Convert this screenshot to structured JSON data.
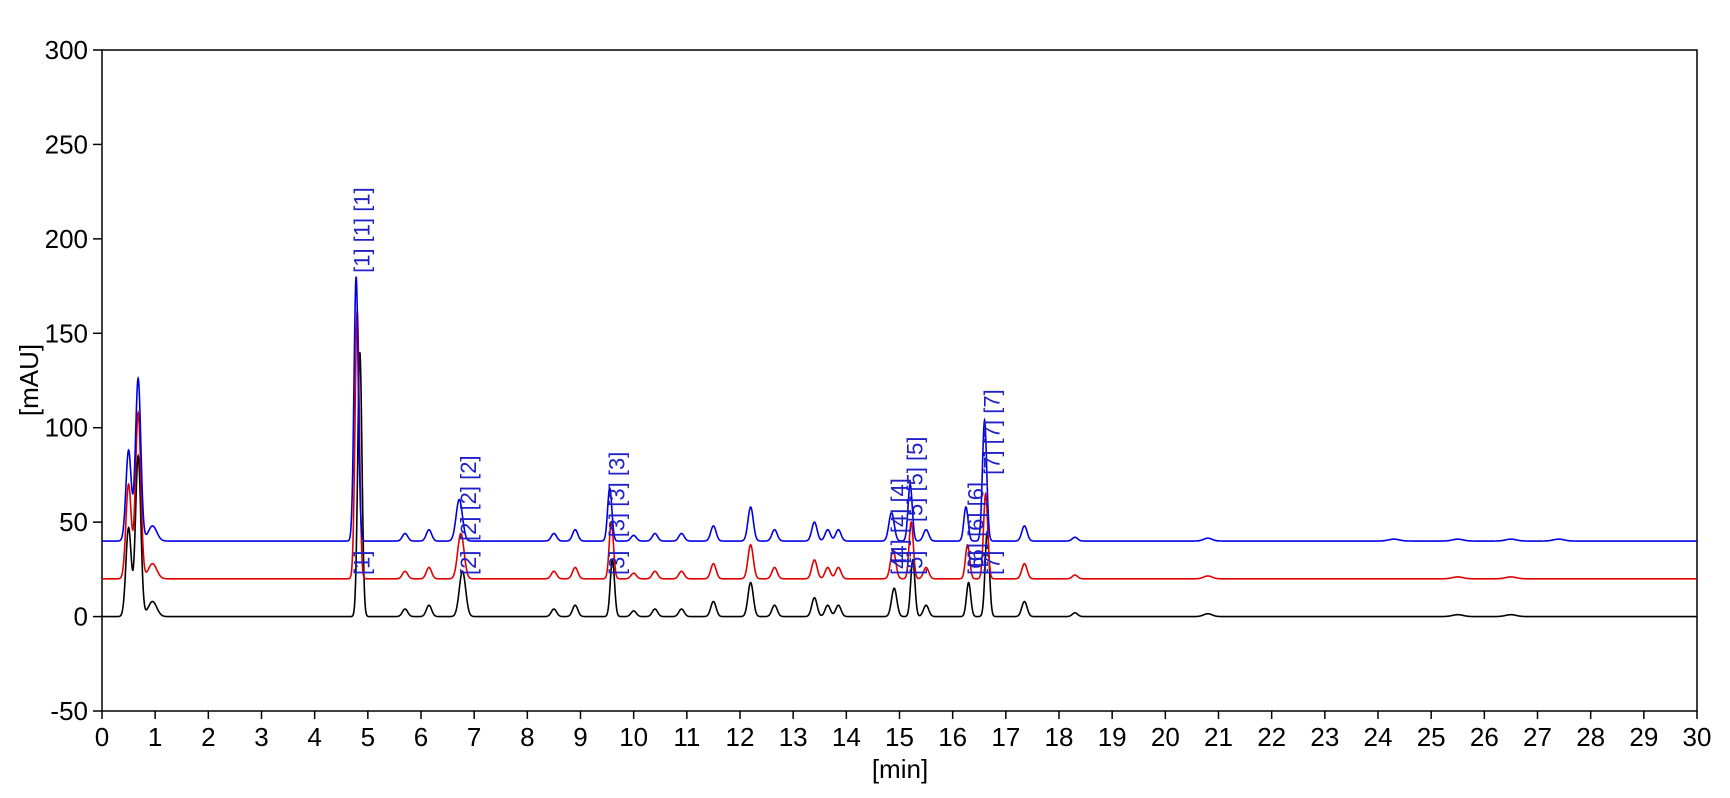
{
  "chart_data": {
    "type": "line",
    "title": "",
    "xlabel": "[min]",
    "ylabel": "[mAU]",
    "xlim": [
      0,
      30
    ],
    "ylim": [
      -50,
      300
    ],
    "x_ticks": [
      0,
      1,
      2,
      3,
      4,
      5,
      6,
      7,
      8,
      9,
      10,
      11,
      12,
      13,
      14,
      15,
      16,
      17,
      18,
      19,
      20,
      21,
      22,
      23,
      24,
      25,
      26,
      27,
      28,
      29,
      30
    ],
    "x_tick_labels": [
      "0",
      "1",
      "2",
      "3",
      "4",
      "5",
      "6",
      "7",
      "8",
      "9",
      "10",
      "11",
      "12",
      "13",
      "14",
      "15",
      "16",
      "17",
      "18",
      "19",
      "20",
      "21",
      "22",
      "23",
      "24",
      "25",
      "26",
      "27",
      "28",
      "29",
      "30"
    ],
    "y_ticks": [
      -50,
      0,
      50,
      100,
      150,
      200,
      250,
      300
    ],
    "y_tick_labels": [
      "-50",
      "0",
      "50",
      "100",
      "150",
      "200",
      "250",
      "300"
    ],
    "grid": false,
    "label_color": "#2020c8",
    "series": [
      {
        "color": "#000000",
        "baseline": 0,
        "peaks": [
          [
            0.5,
            47,
            0.05
          ],
          [
            0.68,
            85,
            0.05
          ],
          [
            0.95,
            8,
            0.08
          ],
          [
            4.85,
            140,
            0.04
          ],
          [
            5.7,
            4,
            0.05
          ],
          [
            6.15,
            6,
            0.05
          ],
          [
            6.78,
            24,
            0.06
          ],
          [
            8.5,
            4,
            0.05
          ],
          [
            8.9,
            6,
            0.05
          ],
          [
            9.6,
            30,
            0.04
          ],
          [
            10.0,
            3,
            0.05
          ],
          [
            10.4,
            4,
            0.05
          ],
          [
            10.9,
            4,
            0.05
          ],
          [
            11.5,
            8,
            0.05
          ],
          [
            12.2,
            18,
            0.05
          ],
          [
            12.65,
            6,
            0.05
          ],
          [
            13.4,
            10,
            0.05
          ],
          [
            13.65,
            6,
            0.05
          ],
          [
            13.85,
            6,
            0.05
          ],
          [
            14.9,
            15,
            0.05
          ],
          [
            15.25,
            30,
            0.04
          ],
          [
            15.5,
            6,
            0.05
          ],
          [
            16.3,
            18,
            0.04
          ],
          [
            16.65,
            45,
            0.04
          ],
          [
            17.35,
            8,
            0.05
          ],
          [
            18.3,
            2,
            0.05
          ],
          [
            20.8,
            1.5,
            0.08
          ],
          [
            25.5,
            1,
            0.1
          ],
          [
            26.5,
            1,
            0.1
          ]
        ],
        "labels": []
      },
      {
        "color": "#e00000",
        "baseline": 20,
        "peaks": [
          [
            0.5,
            50,
            0.05
          ],
          [
            0.68,
            88,
            0.05
          ],
          [
            0.95,
            8,
            0.08
          ],
          [
            4.8,
            142,
            0.04
          ],
          [
            5.7,
            4,
            0.05
          ],
          [
            6.15,
            6,
            0.05
          ],
          [
            6.75,
            24,
            0.06
          ],
          [
            8.5,
            4,
            0.05
          ],
          [
            8.9,
            6,
            0.05
          ],
          [
            9.58,
            30,
            0.04
          ],
          [
            10.0,
            3,
            0.05
          ],
          [
            10.4,
            4,
            0.05
          ],
          [
            10.9,
            4,
            0.05
          ],
          [
            11.5,
            8,
            0.05
          ],
          [
            12.2,
            18,
            0.05
          ],
          [
            12.65,
            6,
            0.05
          ],
          [
            13.4,
            10,
            0.05
          ],
          [
            13.65,
            6,
            0.05
          ],
          [
            13.85,
            6,
            0.05
          ],
          [
            14.88,
            15,
            0.05
          ],
          [
            15.22,
            30,
            0.04
          ],
          [
            15.5,
            6,
            0.05
          ],
          [
            16.28,
            18,
            0.04
          ],
          [
            16.62,
            45,
            0.04
          ],
          [
            17.35,
            8,
            0.05
          ],
          [
            18.3,
            2,
            0.05
          ],
          [
            20.8,
            1.5,
            0.08
          ],
          [
            25.5,
            1,
            0.1
          ],
          [
            26.5,
            1,
            0.1
          ]
        ],
        "labels": [
          {
            "x": 4.9,
            "y": 22,
            "text": "[1]"
          },
          {
            "x": 6.9,
            "y": 22,
            "text": "[2]"
          },
          {
            "x": 9.7,
            "y": 22,
            "text": "[3]"
          },
          {
            "x": 15.0,
            "y": 22,
            "text": "[4]"
          },
          {
            "x": 15.3,
            "y": 22,
            "text": "[5]"
          },
          {
            "x": 16.45,
            "y": 22,
            "text": "[6]"
          },
          {
            "x": 16.75,
            "y": 22,
            "text": "[7]"
          }
        ]
      },
      {
        "color": "#0000e6",
        "baseline": 40,
        "peaks": [
          [
            0.5,
            48,
            0.05
          ],
          [
            0.68,
            86,
            0.05
          ],
          [
            0.95,
            8,
            0.08
          ],
          [
            4.78,
            140,
            0.04
          ],
          [
            5.7,
            4,
            0.05
          ],
          [
            6.15,
            6,
            0.05
          ],
          [
            6.72,
            22,
            0.06
          ],
          [
            8.5,
            4,
            0.05
          ],
          [
            8.9,
            6,
            0.05
          ],
          [
            9.55,
            28,
            0.04
          ],
          [
            10.0,
            3,
            0.05
          ],
          [
            10.4,
            4,
            0.05
          ],
          [
            10.9,
            4,
            0.05
          ],
          [
            11.5,
            8,
            0.05
          ],
          [
            12.2,
            18,
            0.05
          ],
          [
            12.65,
            6,
            0.05
          ],
          [
            13.4,
            10,
            0.05
          ],
          [
            13.65,
            6,
            0.05
          ],
          [
            13.85,
            6,
            0.05
          ],
          [
            14.85,
            15,
            0.05
          ],
          [
            15.2,
            30,
            0.04
          ],
          [
            15.5,
            6,
            0.05
          ],
          [
            16.25,
            18,
            0.04
          ],
          [
            16.6,
            64,
            0.04
          ],
          [
            17.35,
            8,
            0.05
          ],
          [
            18.3,
            2,
            0.05
          ],
          [
            20.8,
            1.5,
            0.08
          ],
          [
            24.3,
            1,
            0.1
          ],
          [
            25.5,
            1,
            0.1
          ],
          [
            26.5,
            1,
            0.1
          ],
          [
            27.4,
            1,
            0.1
          ]
        ],
        "labels": [
          {
            "x": 4.9,
            "y": 182,
            "text": "[1] [1] [1]"
          },
          {
            "x": 6.9,
            "y": 40,
            "text": "[2] [2] [2]"
          },
          {
            "x": 9.7,
            "y": 42,
            "text": "[3] [3] [3]"
          },
          {
            "x": 15.0,
            "y": 28,
            "text": "[4] [4] [4]"
          },
          {
            "x": 15.3,
            "y": 50,
            "text": "[5] [5] [5]"
          },
          {
            "x": 16.45,
            "y": 26,
            "text": "[6] [6] [6]"
          },
          {
            "x": 16.75,
            "y": 75,
            "text": "[7] [7] [7]"
          }
        ]
      }
    ]
  }
}
